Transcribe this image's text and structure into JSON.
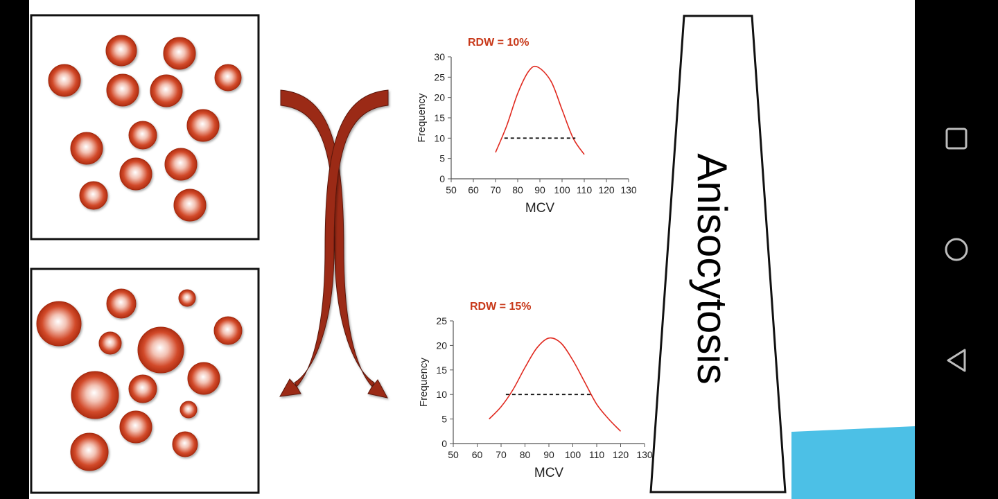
{
  "colors": {
    "cell": "#c8391a",
    "arrow": "#9b2a12",
    "curve": "#e0281e",
    "rdw_label": "#c8391a",
    "accent_corner": "#4cc0e6",
    "nav_icon": "#bdbdbd"
  },
  "trapezoid": {
    "label": "Anisocytosis"
  },
  "chart_data": [
    {
      "type": "line",
      "title": "RDW = 10%",
      "xlabel": "MCV",
      "ylabel": "Frequency",
      "xlim": [
        50,
        130
      ],
      "ylim": [
        0,
        30
      ],
      "xticks": [
        50,
        60,
        70,
        80,
        90,
        100,
        110,
        120,
        130
      ],
      "yticks": [
        0,
        5,
        10,
        15,
        20,
        25,
        30
      ],
      "series": [
        {
          "x": [
            70,
            75,
            80,
            85,
            89,
            95,
            100,
            105,
            110
          ],
          "y": [
            6.5,
            13,
            21,
            26.5,
            27.5,
            24,
            17,
            10,
            6
          ]
        }
      ],
      "width_marker": {
        "y": 10,
        "x_from": 74,
        "x_to": 106,
        "style": "dashed"
      }
    },
    {
      "type": "line",
      "title": "RDW = 15%",
      "xlabel": "MCV",
      "ylabel": "Frequency",
      "xlim": [
        50,
        130
      ],
      "ylim": [
        0,
        25
      ],
      "xticks": [
        50,
        60,
        70,
        80,
        90,
        100,
        110,
        120,
        130
      ],
      "yticks": [
        0,
        5,
        10,
        15,
        20,
        25
      ],
      "series": [
        {
          "x": [
            65,
            70,
            75,
            80,
            85,
            90,
            95,
            100,
            105,
            110,
            115,
            120
          ],
          "y": [
            5,
            7.5,
            11,
            15.5,
            19.5,
            21.5,
            20.5,
            17,
            12.5,
            8,
            5,
            2.5
          ]
        }
      ],
      "width_marker": {
        "y": 10,
        "x_from": 72,
        "x_to": 108,
        "style": "dashed"
      }
    }
  ],
  "nav": {
    "icons": [
      "recent-apps-icon",
      "home-icon",
      "back-icon"
    ]
  }
}
